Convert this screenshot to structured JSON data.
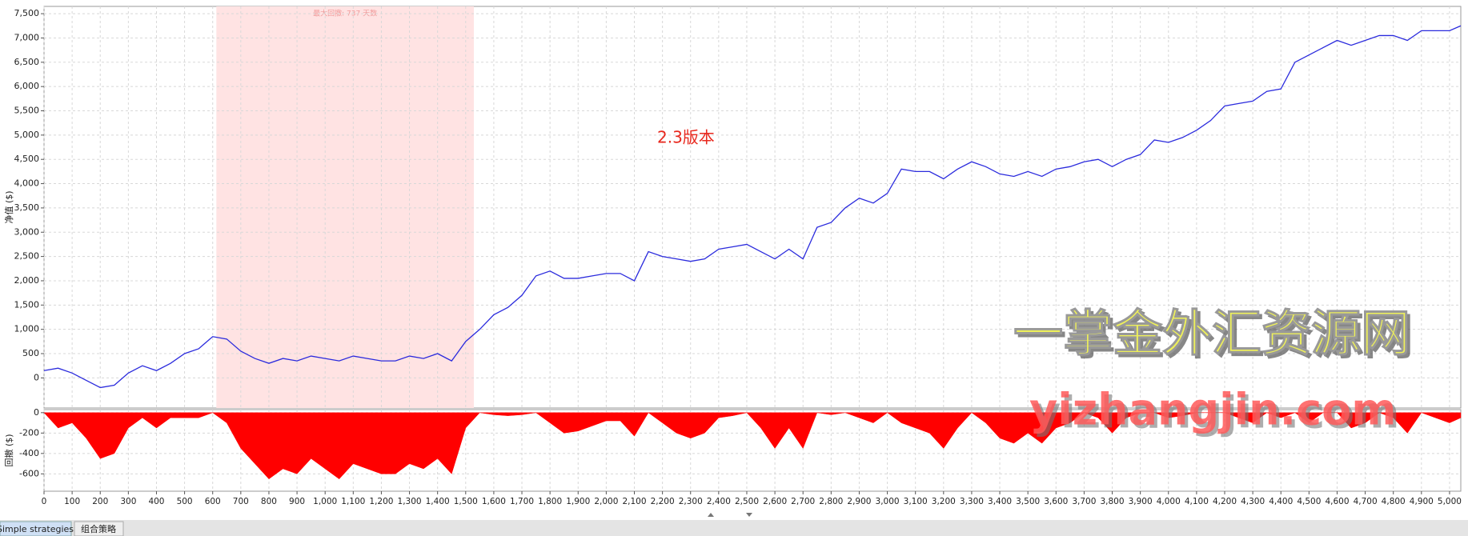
{
  "chart_data": [
    {
      "type": "line",
      "ylabel": "净值 ($)",
      "color": "#2b2bdd",
      "grid": true,
      "highlight": [
        613,
        1529
      ],
      "highlight_color": "#ffe3e3",
      "annotation": "最大回撤: 737 天数",
      "xlim": [
        0,
        5040
      ],
      "ylim": [
        -620,
        7650
      ],
      "yticks": [
        0,
        500,
        {
          "value": 1000,
          "label": "1,000"
        },
        {
          "value": 1500,
          "label": "1,500"
        },
        {
          "value": 2000,
          "label": "2,000"
        },
        {
          "value": 2500,
          "label": "2,500"
        },
        {
          "value": 3000,
          "label": "3,000"
        },
        {
          "value": 3500,
          "label": "3,500"
        },
        {
          "value": 4000,
          "label": "4,000"
        },
        {
          "value": 4500,
          "label": "4,500"
        },
        {
          "value": 5000,
          "label": "5,000"
        },
        {
          "value": 5500,
          "label": "5,500"
        },
        {
          "value": 6000,
          "label": "6,000"
        },
        {
          "value": 6500,
          "label": "6,500"
        },
        {
          "value": 7000,
          "label": "7,000"
        },
        {
          "value": 7500,
          "label": "7,500"
        }
      ],
      "x": [
        0,
        50,
        100,
        150,
        200,
        250,
        300,
        350,
        400,
        450,
        500,
        550,
        600,
        650,
        700,
        750,
        800,
        850,
        900,
        950,
        1000,
        1050,
        1100,
        1150,
        1200,
        1250,
        1300,
        1350,
        1400,
        1450,
        1500,
        1550,
        1600,
        1650,
        1700,
        1750,
        1800,
        1850,
        1900,
        1950,
        2000,
        2050,
        2100,
        2150,
        2200,
        2250,
        2300,
        2350,
        2400,
        2450,
        2500,
        2550,
        2600,
        2650,
        2700,
        2750,
        2800,
        2850,
        2900,
        2950,
        3000,
        3050,
        3100,
        3150,
        3200,
        3250,
        3300,
        3350,
        3400,
        3450,
        3500,
        3550,
        3600,
        3650,
        3700,
        3750,
        3800,
        3850,
        3900,
        3950,
        4000,
        4050,
        4100,
        4150,
        4200,
        4250,
        4300,
        4350,
        4400,
        4450,
        4500,
        4550,
        4600,
        4650,
        4700,
        4750,
        4800,
        4850,
        4900,
        4950,
        5000,
        5040
      ],
      "values": [
        150,
        200,
        100,
        -50,
        -200,
        -150,
        100,
        250,
        150,
        300,
        500,
        600,
        850,
        800,
        550,
        400,
        300,
        400,
        350,
        450,
        400,
        350,
        450,
        400,
        350,
        350,
        450,
        400,
        500,
        350,
        750,
        1000,
        1300,
        1450,
        1700,
        2100,
        2200,
        2050,
        2050,
        2100,
        2150,
        2150,
        2000,
        2600,
        2500,
        2450,
        2400,
        2450,
        2650,
        2700,
        2750,
        2600,
        2450,
        2650,
        2450,
        3100,
        3200,
        3500,
        3700,
        3600,
        3800,
        4300,
        4250,
        4250,
        4100,
        4300,
        4450,
        4350,
        4200,
        4150,
        4250,
        4150,
        4300,
        4350,
        4450,
        4500,
        4350,
        4500,
        4600,
        4900,
        4850,
        4950,
        5100,
        5300,
        5600,
        5650,
        5700,
        5900,
        5950,
        6500,
        6650,
        6800,
        6950,
        6850,
        6950,
        7050,
        7050,
        6950,
        7150,
        7150,
        7150,
        7250
      ]
    },
    {
      "type": "area",
      "ylabel": "回撤 ($)",
      "color": "#ff0000",
      "grid": true,
      "xlim": [
        0,
        5040
      ],
      "ylim": [
        -770,
        30
      ],
      "yticks": [
        0,
        -200,
        -400,
        -600
      ],
      "xticks": [
        0,
        100,
        200,
        300,
        400,
        500,
        600,
        700,
        800,
        900,
        {
          "value": 1000,
          "label": "1,000"
        },
        {
          "value": 1100,
          "label": "1,100"
        },
        {
          "value": 1200,
          "label": "1,200"
        },
        {
          "value": 1300,
          "label": "1,300"
        },
        {
          "value": 1400,
          "label": "1,400"
        },
        {
          "value": 1500,
          "label": "1,500"
        },
        {
          "value": 1600,
          "label": "1,600"
        },
        {
          "value": 1700,
          "label": "1,700"
        },
        {
          "value": 1800,
          "label": "1,800"
        },
        {
          "value": 1900,
          "label": "1,900"
        },
        {
          "value": 2000,
          "label": "2,000"
        },
        {
          "value": 2100,
          "label": "2,100"
        },
        {
          "value": 2200,
          "label": "2,200"
        },
        {
          "value": 2300,
          "label": "2,300"
        },
        {
          "value": 2400,
          "label": "2,400"
        },
        {
          "value": 2500,
          "label": "2,500"
        },
        {
          "value": 2600,
          "label": "2,600"
        },
        {
          "value": 2700,
          "label": "2,700"
        },
        {
          "value": 2800,
          "label": "2,800"
        },
        {
          "value": 2900,
          "label": "2,900"
        },
        {
          "value": 3000,
          "label": "3,000"
        },
        {
          "value": 3100,
          "label": "3,100"
        },
        {
          "value": 3200,
          "label": "3,200"
        },
        {
          "value": 3300,
          "label": "3,300"
        },
        {
          "value": 3400,
          "label": "3,400"
        },
        {
          "value": 3500,
          "label": "3,500"
        },
        {
          "value": 3600,
          "label": "3,600"
        },
        {
          "value": 3700,
          "label": "3,700"
        },
        {
          "value": 3800,
          "label": "3,800"
        },
        {
          "value": 3900,
          "label": "3,900"
        },
        {
          "value": 4000,
          "label": "4,000"
        },
        {
          "value": 4100,
          "label": "4,100"
        },
        {
          "value": 4200,
          "label": "4,200"
        },
        {
          "value": 4300,
          "label": "4,300"
        },
        {
          "value": 4400,
          "label": "4,400"
        },
        {
          "value": 4500,
          "label": "4,500"
        },
        {
          "value": 4600,
          "label": "4,600"
        },
        {
          "value": 4700,
          "label": "4,700"
        },
        {
          "value": 4800,
          "label": "4,800"
        },
        {
          "value": 4900,
          "label": "4,900"
        },
        {
          "value": 5000,
          "label": "5,000"
        }
      ],
      "x": [
        0,
        50,
        100,
        150,
        200,
        250,
        300,
        350,
        400,
        450,
        500,
        550,
        600,
        650,
        700,
        750,
        800,
        850,
        900,
        950,
        1000,
        1050,
        1100,
        1150,
        1200,
        1250,
        1300,
        1350,
        1400,
        1450,
        1500,
        1550,
        1600,
        1650,
        1700,
        1750,
        1800,
        1850,
        1900,
        1950,
        2000,
        2050,
        2100,
        2150,
        2200,
        2250,
        2300,
        2350,
        2400,
        2450,
        2500,
        2550,
        2600,
        2650,
        2700,
        2750,
        2800,
        2850,
        2900,
        2950,
        3000,
        3050,
        3100,
        3150,
        3200,
        3250,
        3300,
        3350,
        3400,
        3450,
        3500,
        3550,
        3600,
        3650,
        3700,
        3750,
        3800,
        3850,
        3900,
        3950,
        4000,
        4050,
        4100,
        4150,
        4200,
        4250,
        4300,
        4350,
        4400,
        4450,
        4500,
        4550,
        4600,
        4650,
        4700,
        4750,
        4800,
        4850,
        4900,
        4950,
        5000,
        5040
      ],
      "values": [
        0,
        -150,
        -100,
        -250,
        -450,
        -400,
        -150,
        -50,
        -150,
        -50,
        -50,
        -50,
        0,
        -100,
        -350,
        -500,
        -650,
        -550,
        -600,
        -450,
        -550,
        -650,
        -500,
        -550,
        -600,
        -600,
        -500,
        -550,
        -450,
        -600,
        -150,
        0,
        -20,
        -30,
        -20,
        0,
        -100,
        -200,
        -180,
        -130,
        -80,
        -80,
        -230,
        0,
        -100,
        -200,
        -250,
        -200,
        -50,
        -30,
        0,
        -150,
        -350,
        -150,
        -350,
        0,
        -20,
        0,
        -50,
        -100,
        0,
        -100,
        -150,
        -200,
        -350,
        -150,
        0,
        -100,
        -250,
        -300,
        -200,
        -300,
        -150,
        -100,
        0,
        -50,
        -200,
        -50,
        0,
        0,
        -50,
        -30,
        0,
        0,
        0,
        -50,
        -100,
        0,
        -50,
        0,
        -100,
        0,
        0,
        -150,
        -100,
        0,
        -50,
        -200,
        0,
        -50,
        -100,
        -50
      ]
    }
  ],
  "watermark": {
    "version": "2.3版本",
    "site": "一掌金外汇资源网",
    "url": "yizhangjin.com"
  },
  "tabs": [
    "Simple strategies",
    "组合策略"
  ]
}
